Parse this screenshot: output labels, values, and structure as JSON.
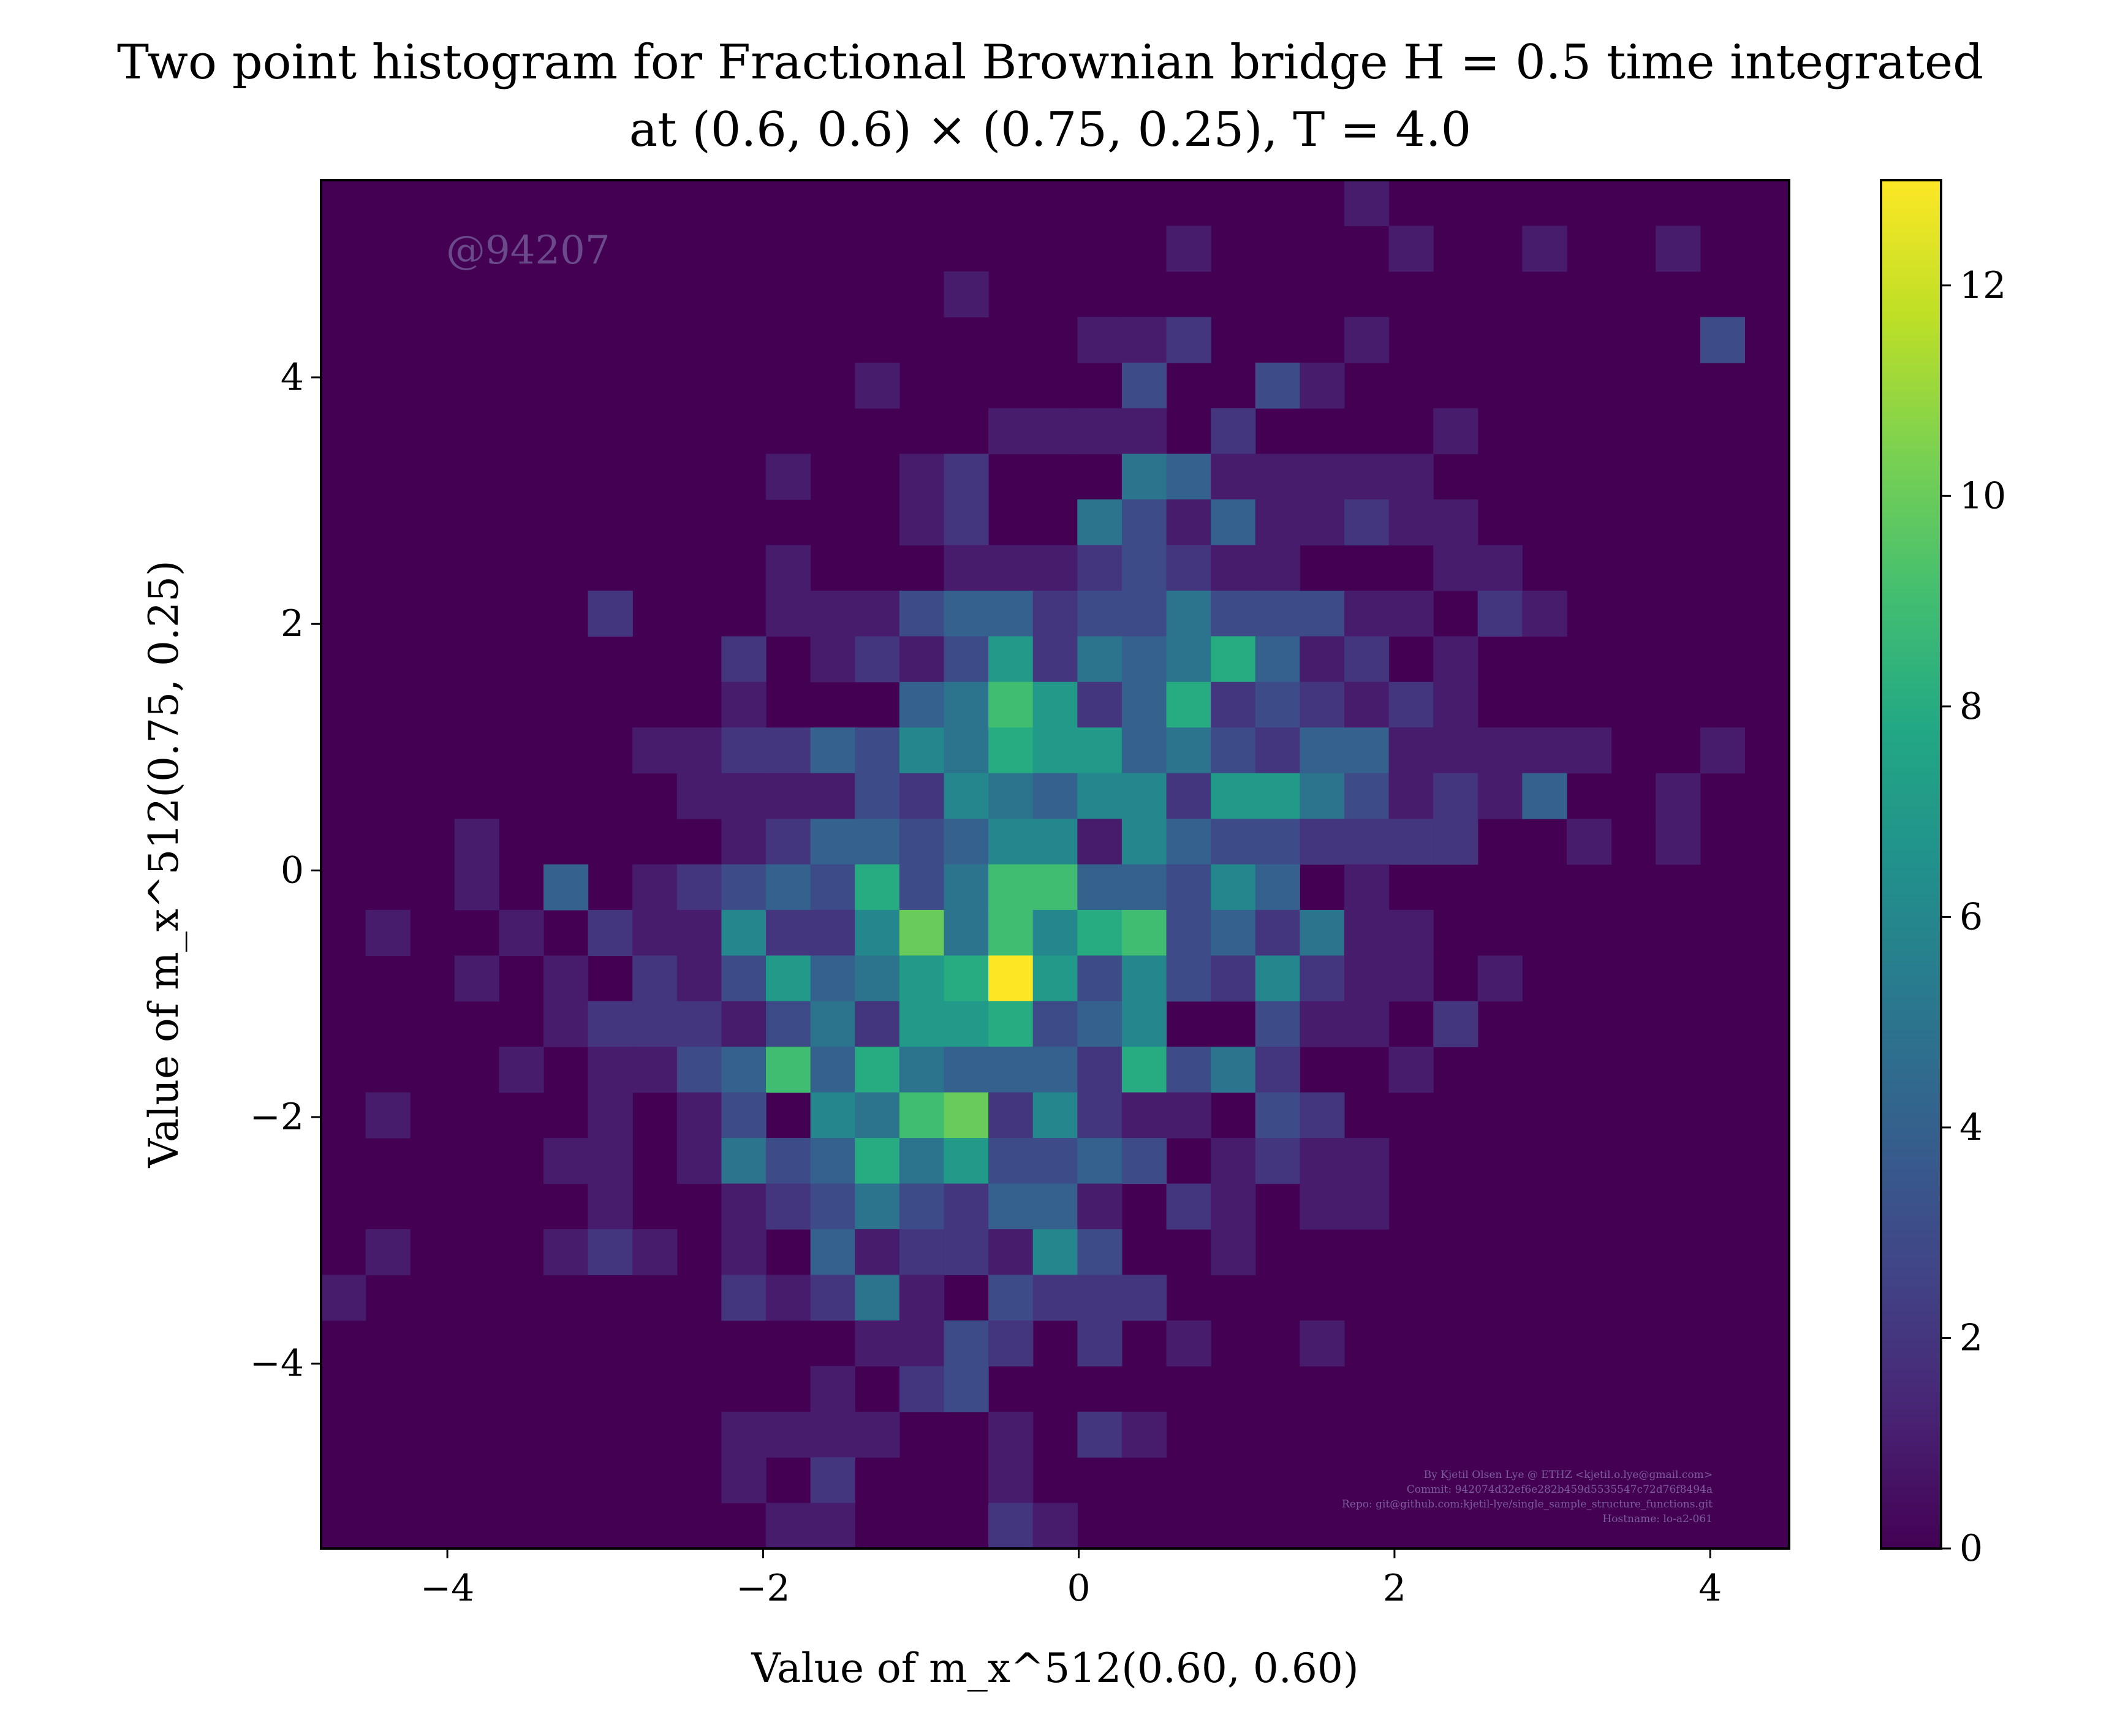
{
  "chart_data": {
    "type": "heatmap",
    "title_line1": "Two point histogram for Fractional Brownian bridge H = 0.5 time integrated",
    "title_line2": "at (0.6, 0.6) × (0.75, 0.25), T = 4.0",
    "xlabel": "Value of m_x^512(0.60, 0.60)",
    "ylabel": "Value of m_x^512(0.75, 0.25)",
    "xlim": [
      -4.8,
      4.5
    ],
    "ylim": [
      -5.5,
      5.6
    ],
    "xticks": [
      -4,
      -2,
      0,
      2,
      4
    ],
    "yticks": [
      -4,
      -2,
      0,
      2,
      4
    ],
    "xtick_labels": [
      "−4",
      "−2",
      "0",
      "2",
      "4"
    ],
    "ytick_labels": [
      "−4",
      "−2",
      "0",
      "2",
      "4"
    ],
    "nx": 33,
    "ny": 30,
    "colormap": "viridis",
    "colorbar_range": [
      0,
      13
    ],
    "colorbar_ticks": [
      0,
      2,
      4,
      6,
      8,
      10,
      12
    ],
    "colorbar_tick_labels": [
      "0",
      "2",
      "4",
      "6",
      "8",
      "10",
      "12"
    ],
    "cells": [
      [
        23,
        29,
        1
      ],
      [
        19,
        28,
        1
      ],
      [
        27,
        28,
        1
      ],
      [
        30,
        28,
        1
      ],
      [
        24,
        28,
        1
      ],
      [
        14,
        27,
        1
      ],
      [
        17,
        26,
        1
      ],
      [
        18,
        26,
        1
      ],
      [
        19,
        26,
        2
      ],
      [
        23,
        26,
        1
      ],
      [
        31,
        26,
        3
      ],
      [
        12,
        25,
        1
      ],
      [
        18,
        25,
        3
      ],
      [
        21,
        25,
        3
      ],
      [
        22,
        25,
        1
      ],
      [
        15,
        24,
        1
      ],
      [
        16,
        24,
        1
      ],
      [
        17,
        24,
        1
      ],
      [
        18,
        24,
        1
      ],
      [
        20,
        24,
        2
      ],
      [
        25,
        24,
        1
      ],
      [
        10,
        23,
        1
      ],
      [
        13,
        23,
        1
      ],
      [
        14,
        23,
        2
      ],
      [
        18,
        23,
        5
      ],
      [
        19,
        23,
        4
      ],
      [
        20,
        23,
        1
      ],
      [
        21,
        23,
        1
      ],
      [
        22,
        23,
        1
      ],
      [
        23,
        23,
        1
      ],
      [
        24,
        23,
        1
      ],
      [
        13,
        22,
        1
      ],
      [
        14,
        22,
        2
      ],
      [
        17,
        22,
        5
      ],
      [
        18,
        22,
        3
      ],
      [
        19,
        22,
        1
      ],
      [
        20,
        22,
        4
      ],
      [
        21,
        22,
        1
      ],
      [
        22,
        22,
        1
      ],
      [
        23,
        22,
        2
      ],
      [
        24,
        22,
        1
      ],
      [
        25,
        22,
        1
      ],
      [
        10,
        21,
        1
      ],
      [
        14,
        21,
        1
      ],
      [
        15,
        21,
        1
      ],
      [
        16,
        21,
        1
      ],
      [
        17,
        21,
        2
      ],
      [
        18,
        21,
        3
      ],
      [
        19,
        21,
        2
      ],
      [
        20,
        21,
        1
      ],
      [
        21,
        21,
        1
      ],
      [
        25,
        21,
        1
      ],
      [
        26,
        21,
        1
      ],
      [
        6,
        20,
        2
      ],
      [
        10,
        20,
        1
      ],
      [
        11,
        20,
        1
      ],
      [
        12,
        20,
        1
      ],
      [
        13,
        20,
        3
      ],
      [
        14,
        20,
        4
      ],
      [
        15,
        20,
        4
      ],
      [
        16,
        20,
        2
      ],
      [
        17,
        20,
        3
      ],
      [
        18,
        20,
        3
      ],
      [
        19,
        20,
        5
      ],
      [
        20,
        20,
        3
      ],
      [
        21,
        20,
        3
      ],
      [
        22,
        20,
        3
      ],
      [
        23,
        20,
        1
      ],
      [
        24,
        20,
        1
      ],
      [
        26,
        20,
        2
      ],
      [
        27,
        20,
        1
      ],
      [
        9,
        19,
        2
      ],
      [
        11,
        19,
        1
      ],
      [
        12,
        19,
        2
      ],
      [
        13,
        19,
        1
      ],
      [
        14,
        19,
        3
      ],
      [
        15,
        19,
        7
      ],
      [
        16,
        19,
        2
      ],
      [
        17,
        19,
        5
      ],
      [
        18,
        19,
        4
      ],
      [
        19,
        19,
        5
      ],
      [
        20,
        19,
        8
      ],
      [
        21,
        19,
        4
      ],
      [
        22,
        19,
        1
      ],
      [
        23,
        19,
        2
      ],
      [
        25,
        19,
        1
      ],
      [
        9,
        18,
        1
      ],
      [
        13,
        18,
        4
      ],
      [
        14,
        18,
        5
      ],
      [
        15,
        18,
        9
      ],
      [
        16,
        18,
        7
      ],
      [
        17,
        18,
        2
      ],
      [
        18,
        18,
        4
      ],
      [
        19,
        18,
        8
      ],
      [
        20,
        18,
        2
      ],
      [
        21,
        18,
        3
      ],
      [
        22,
        18,
        2
      ],
      [
        23,
        18,
        1
      ],
      [
        24,
        18,
        2
      ],
      [
        25,
        18,
        1
      ],
      [
        7,
        17,
        1
      ],
      [
        8,
        17,
        1
      ],
      [
        9,
        17,
        2
      ],
      [
        10,
        17,
        2
      ],
      [
        11,
        17,
        4
      ],
      [
        12,
        17,
        3
      ],
      [
        13,
        17,
        6
      ],
      [
        14,
        17,
        5
      ],
      [
        15,
        17,
        8
      ],
      [
        16,
        17,
        7
      ],
      [
        17,
        17,
        7
      ],
      [
        18,
        17,
        4
      ],
      [
        19,
        17,
        5
      ],
      [
        20,
        17,
        3
      ],
      [
        21,
        17,
        2
      ],
      [
        22,
        17,
        4
      ],
      [
        23,
        17,
        4
      ],
      [
        24,
        17,
        1
      ],
      [
        25,
        17,
        1
      ],
      [
        26,
        17,
        1
      ],
      [
        27,
        17,
        1
      ],
      [
        28,
        17,
        1
      ],
      [
        31,
        17,
        1
      ],
      [
        8,
        16,
        1
      ],
      [
        9,
        16,
        1
      ],
      [
        10,
        16,
        1
      ],
      [
        11,
        16,
        1
      ],
      [
        12,
        16,
        3
      ],
      [
        13,
        16,
        2
      ],
      [
        14,
        16,
        6
      ],
      [
        15,
        16,
        5
      ],
      [
        16,
        16,
        4
      ],
      [
        17,
        16,
        6
      ],
      [
        18,
        16,
        6
      ],
      [
        19,
        16,
        2
      ],
      [
        20,
        16,
        7
      ],
      [
        21,
        16,
        7
      ],
      [
        22,
        16,
        5
      ],
      [
        23,
        16,
        3
      ],
      [
        24,
        16,
        1
      ],
      [
        25,
        16,
        2
      ],
      [
        26,
        16,
        1
      ],
      [
        27,
        16,
        4
      ],
      [
        30,
        16,
        1
      ],
      [
        3,
        15,
        1
      ],
      [
        9,
        15,
        1
      ],
      [
        10,
        15,
        2
      ],
      [
        11,
        15,
        4
      ],
      [
        12,
        15,
        4
      ],
      [
        13,
        15,
        3
      ],
      [
        14,
        15,
        4
      ],
      [
        15,
        15,
        6
      ],
      [
        16,
        15,
        6
      ],
      [
        17,
        15,
        1
      ],
      [
        18,
        15,
        6
      ],
      [
        19,
        15,
        4
      ],
      [
        20,
        15,
        3
      ],
      [
        21,
        15,
        3
      ],
      [
        22,
        15,
        2
      ],
      [
        23,
        15,
        2
      ],
      [
        24,
        15,
        2
      ],
      [
        25,
        15,
        2
      ],
      [
        28,
        15,
        1
      ],
      [
        30,
        15,
        1
      ],
      [
        3,
        14,
        1
      ],
      [
        5,
        14,
        4
      ],
      [
        7,
        14,
        1
      ],
      [
        8,
        14,
        2
      ],
      [
        9,
        14,
        3
      ],
      [
        10,
        14,
        4
      ],
      [
        11,
        14,
        3
      ],
      [
        12,
        14,
        8
      ],
      [
        13,
        14,
        3
      ],
      [
        14,
        14,
        5
      ],
      [
        15,
        14,
        9
      ],
      [
        16,
        14,
        9
      ],
      [
        17,
        14,
        4
      ],
      [
        18,
        14,
        4
      ],
      [
        19,
        14,
        3
      ],
      [
        20,
        14,
        6
      ],
      [
        21,
        14,
        4
      ],
      [
        23,
        14,
        1
      ],
      [
        1,
        13,
        1
      ],
      [
        4,
        13,
        1
      ],
      [
        6,
        13,
        2
      ],
      [
        7,
        13,
        1
      ],
      [
        8,
        13,
        1
      ],
      [
        9,
        13,
        6
      ],
      [
        10,
        13,
        2
      ],
      [
        11,
        13,
        2
      ],
      [
        12,
        13,
        6
      ],
      [
        13,
        13,
        10
      ],
      [
        14,
        13,
        5
      ],
      [
        15,
        13,
        9
      ],
      [
        16,
        13,
        6
      ],
      [
        17,
        13,
        8
      ],
      [
        18,
        13,
        9
      ],
      [
        19,
        13,
        3
      ],
      [
        20,
        13,
        4
      ],
      [
        21,
        13,
        2
      ],
      [
        22,
        13,
        5
      ],
      [
        23,
        13,
        1
      ],
      [
        24,
        13,
        1
      ],
      [
        3,
        12,
        1
      ],
      [
        5,
        12,
        1
      ],
      [
        7,
        12,
        2
      ],
      [
        8,
        12,
        1
      ],
      [
        9,
        12,
        3
      ],
      [
        10,
        12,
        7
      ],
      [
        11,
        12,
        4
      ],
      [
        12,
        12,
        5
      ],
      [
        13,
        12,
        7
      ],
      [
        14,
        12,
        8
      ],
      [
        15,
        12,
        13
      ],
      [
        16,
        12,
        7
      ],
      [
        17,
        12,
        3
      ],
      [
        18,
        12,
        6
      ],
      [
        19,
        12,
        3
      ],
      [
        20,
        12,
        2
      ],
      [
        21,
        12,
        6
      ],
      [
        22,
        12,
        2
      ],
      [
        23,
        12,
        1
      ],
      [
        24,
        12,
        1
      ],
      [
        26,
        12,
        1
      ],
      [
        5,
        11,
        1
      ],
      [
        6,
        11,
        2
      ],
      [
        7,
        11,
        2
      ],
      [
        8,
        11,
        2
      ],
      [
        9,
        11,
        1
      ],
      [
        10,
        11,
        3
      ],
      [
        11,
        11,
        5
      ],
      [
        12,
        11,
        2
      ],
      [
        13,
        11,
        7
      ],
      [
        14,
        11,
        7
      ],
      [
        15,
        11,
        8
      ],
      [
        16,
        11,
        3
      ],
      [
        17,
        11,
        4
      ],
      [
        18,
        11,
        6
      ],
      [
        21,
        11,
        3
      ],
      [
        22,
        11,
        1
      ],
      [
        23,
        11,
        1
      ],
      [
        25,
        11,
        2
      ],
      [
        4,
        10,
        1
      ],
      [
        6,
        10,
        1
      ],
      [
        7,
        10,
        1
      ],
      [
        8,
        10,
        3
      ],
      [
        9,
        10,
        4
      ],
      [
        10,
        10,
        9
      ],
      [
        11,
        10,
        4
      ],
      [
        12,
        10,
        8
      ],
      [
        13,
        10,
        5
      ],
      [
        14,
        10,
        4
      ],
      [
        15,
        10,
        4
      ],
      [
        16,
        10,
        4
      ],
      [
        17,
        10,
        2
      ],
      [
        18,
        10,
        8
      ],
      [
        19,
        10,
        3
      ],
      [
        20,
        10,
        5
      ],
      [
        21,
        10,
        2
      ],
      [
        24,
        10,
        1
      ],
      [
        1,
        9,
        1
      ],
      [
        6,
        9,
        1
      ],
      [
        8,
        9,
        1
      ],
      [
        9,
        9,
        3
      ],
      [
        11,
        9,
        6
      ],
      [
        12,
        9,
        5
      ],
      [
        13,
        9,
        9
      ],
      [
        14,
        9,
        10
      ],
      [
        15,
        9,
        2
      ],
      [
        16,
        9,
        6
      ],
      [
        17,
        9,
        2
      ],
      [
        18,
        9,
        1
      ],
      [
        19,
        9,
        1
      ],
      [
        21,
        9,
        3
      ],
      [
        22,
        9,
        2
      ],
      [
        5,
        8,
        1
      ],
      [
        6,
        8,
        1
      ],
      [
        8,
        8,
        1
      ],
      [
        9,
        8,
        5
      ],
      [
        10,
        8,
        3
      ],
      [
        11,
        8,
        4
      ],
      [
        12,
        8,
        8
      ],
      [
        13,
        8,
        5
      ],
      [
        14,
        8,
        7
      ],
      [
        15,
        8,
        3
      ],
      [
        16,
        8,
        3
      ],
      [
        17,
        8,
        4
      ],
      [
        18,
        8,
        3
      ],
      [
        20,
        8,
        1
      ],
      [
        21,
        8,
        2
      ],
      [
        22,
        8,
        1
      ],
      [
        23,
        8,
        1
      ],
      [
        6,
        7,
        1
      ],
      [
        9,
        7,
        1
      ],
      [
        10,
        7,
        2
      ],
      [
        11,
        7,
        3
      ],
      [
        12,
        7,
        5
      ],
      [
        13,
        7,
        3
      ],
      [
        14,
        7,
        2
      ],
      [
        15,
        7,
        4
      ],
      [
        16,
        7,
        4
      ],
      [
        17,
        7,
        1
      ],
      [
        19,
        7,
        2
      ],
      [
        20,
        7,
        1
      ],
      [
        22,
        7,
        1
      ],
      [
        23,
        7,
        1
      ],
      [
        1,
        6,
        1
      ],
      [
        5,
        6,
        1
      ],
      [
        6,
        6,
        2
      ],
      [
        7,
        6,
        1
      ],
      [
        9,
        6,
        1
      ],
      [
        11,
        6,
        4
      ],
      [
        12,
        6,
        1
      ],
      [
        13,
        6,
        2
      ],
      [
        14,
        6,
        2
      ],
      [
        15,
        6,
        1
      ],
      [
        16,
        6,
        6
      ],
      [
        17,
        6,
        3
      ],
      [
        20,
        6,
        1
      ],
      [
        0,
        5,
        1
      ],
      [
        9,
        5,
        2
      ],
      [
        10,
        5,
        1
      ],
      [
        11,
        5,
        2
      ],
      [
        12,
        5,
        5
      ],
      [
        13,
        5,
        1
      ],
      [
        15,
        5,
        3
      ],
      [
        16,
        5,
        2
      ],
      [
        17,
        5,
        2
      ],
      [
        18,
        5,
        2
      ],
      [
        12,
        4,
        1
      ],
      [
        13,
        4,
        1
      ],
      [
        14,
        4,
        3
      ],
      [
        15,
        4,
        2
      ],
      [
        17,
        4,
        2
      ],
      [
        19,
        4,
        1
      ],
      [
        22,
        4,
        1
      ],
      [
        11,
        3,
        1
      ],
      [
        13,
        3,
        2
      ],
      [
        14,
        3,
        3
      ],
      [
        9,
        2,
        1
      ],
      [
        10,
        2,
        1
      ],
      [
        11,
        2,
        1
      ],
      [
        12,
        2,
        1
      ],
      [
        15,
        2,
        1
      ],
      [
        17,
        2,
        2
      ],
      [
        18,
        2,
        1
      ],
      [
        9,
        1,
        1
      ],
      [
        11,
        1,
        2
      ],
      [
        15,
        1,
        1
      ],
      [
        10,
        0,
        1
      ],
      [
        11,
        0,
        1
      ],
      [
        15,
        0,
        2
      ],
      [
        16,
        0,
        1
      ]
    ]
  },
  "watermark": "@94207",
  "credits": [
    "By Kjetil Olsen Lye @ ETHZ <kjetil.o.lye@gmail.com>",
    "Commit: 942074d32ef6e282b459d5535547c72d76f8494a",
    "Repo: git@github.com:kjetil-lye/single_sample_structure_functions.git",
    "Hostname: lo-a2-061"
  ]
}
